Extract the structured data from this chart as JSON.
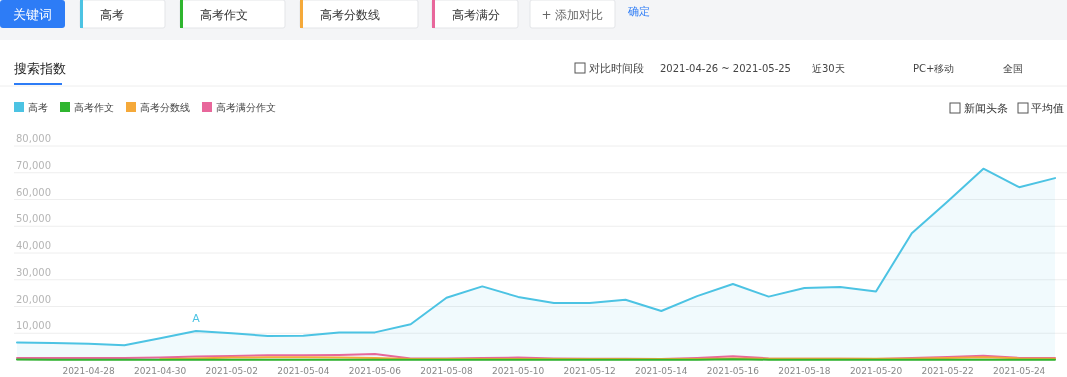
{
  "chart_data": {
    "type": "line",
    "title": "搜索指数",
    "x": [
      "2021-04-26",
      "2021-04-27",
      "2021-04-28",
      "2021-04-29",
      "2021-04-30",
      "2021-05-01",
      "2021-05-02",
      "2021-05-03",
      "2021-05-04",
      "2021-05-05",
      "2021-05-06",
      "2021-05-07",
      "2021-05-08",
      "2021-05-09",
      "2021-05-10",
      "2021-05-11",
      "2021-05-12",
      "2021-05-13",
      "2021-05-14",
      "2021-05-15",
      "2021-05-16",
      "2021-05-17",
      "2021-05-18",
      "2021-05-19",
      "2021-05-20",
      "2021-05-21",
      "2021-05-22",
      "2021-05-23",
      "2021-05-24",
      "2021-05-25"
    ],
    "series": [
      {
        "name": "高考",
        "type": "area",
        "color": "#4cc3e3",
        "values": [
          6500,
          6300,
          6100,
          5500,
          8100,
          10800,
          10000,
          9000,
          9100,
          10300,
          10300,
          13400,
          23300,
          27500,
          23600,
          21300,
          21300,
          22500,
          18300,
          23900,
          28400,
          23700,
          26900,
          27300,
          25600,
          47400,
          59200,
          71500,
          64600,
          68000
        ]
      },
      {
        "name": "高考作文",
        "color": "#2fb52f",
        "values": [
          200,
          100,
          100,
          100,
          100,
          100,
          100,
          100,
          100,
          100,
          100,
          100,
          100,
          100,
          100,
          100,
          100,
          100,
          100,
          100,
          300,
          100,
          100,
          100,
          100,
          100,
          100,
          100,
          100,
          100
        ]
      },
      {
        "name": "高考分数线",
        "color": "#f5a93a",
        "values": [
          null,
          null,
          null,
          null,
          300,
          600,
          900,
          1000,
          1000,
          900,
          800,
          400,
          400,
          400,
          400,
          400,
          400,
          400,
          400,
          400,
          600,
          500,
          500,
          500,
          500,
          500,
          700,
          1000,
          600,
          500
        ]
      },
      {
        "name": "高考满分作文",
        "color": "#e8679b",
        "values": [
          700,
          700,
          700,
          700,
          900,
          1300,
          1500,
          1800,
          1800,
          1900,
          2200,
          600,
          600,
          700,
          900,
          600,
          500,
          500,
          400,
          800,
          1400,
          600,
          500,
          500,
          400,
          800,
          1100,
          1600,
          800,
          700
        ]
      }
    ],
    "xlim": [
      "2021-04-26",
      "2021-05-25"
    ],
    "xticks": [
      {
        "value": "2021-04-28",
        "label": "2021-04-28"
      },
      {
        "value": "2021-04-30",
        "label": "2021-04-30"
      },
      {
        "value": "2021-05-02",
        "label": "2021-05-02"
      },
      {
        "value": "2021-05-04",
        "label": "2021-05-04"
      },
      {
        "value": "2021-05-06",
        "label": "2021-05-06"
      },
      {
        "value": "2021-05-08",
        "label": "2021-05-08"
      },
      {
        "value": "2021-05-10",
        "label": "2021-05-10"
      },
      {
        "value": "2021-05-12",
        "label": "2021-05-12"
      },
      {
        "value": "2021-05-14",
        "label": "2021-05-14"
      },
      {
        "value": "2021-05-16",
        "label": "2021-05-16"
      },
      {
        "value": "2021-05-18",
        "label": "2021-05-18"
      },
      {
        "value": "2021-05-20",
        "label": "2021-05-20"
      },
      {
        "value": "2021-05-22",
        "label": "2021-05-22"
      },
      {
        "value": "2021-05-24",
        "label": "2021-05-24"
      }
    ],
    "ylim": [
      0,
      80000
    ],
    "yticks": [
      {
        "value": 10000,
        "label": "10,000"
      },
      {
        "value": 20000,
        "label": "20,000"
      },
      {
        "value": 30000,
        "label": "30,000"
      },
      {
        "value": 40000,
        "label": "40,000"
      },
      {
        "value": 50000,
        "label": "50,000"
      },
      {
        "value": 60000,
        "label": "60,000"
      },
      {
        "value": 70000,
        "label": "70,000"
      },
      {
        "value": 80000,
        "label": "80,000"
      }
    ],
    "grid": "y",
    "legend": "top left",
    "marker": "none",
    "line_style": "solid",
    "annotations": [
      "关键词",
      "高考",
      "高考作文",
      "高考分数线",
      "高考满分",
      "+ 添加对比",
      "确定",
      "对比时间段",
      "2021-04-26 ~ 2021-05-25",
      "近30天",
      "PC+移动",
      "全国",
      "新闻头条",
      "平均值",
      {
        "text": "A",
        "x": "2021-05-01",
        "y": 10800
      }
    ]
  }
}
